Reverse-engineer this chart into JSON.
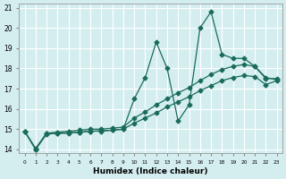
{
  "line1_x": [
    0,
    1,
    2,
    3,
    4,
    5,
    6,
    7,
    8,
    9,
    10,
    11,
    12,
    13,
    14,
    15,
    16,
    17,
    18,
    19,
    20,
    21,
    22,
    23
  ],
  "line1_y": [
    14.9,
    14.0,
    14.8,
    14.8,
    14.8,
    14.85,
    14.9,
    14.9,
    14.95,
    15.0,
    16.5,
    17.55,
    19.3,
    18.0,
    15.4,
    16.2,
    20.0,
    20.8,
    18.7,
    18.5,
    18.5,
    18.1,
    17.5,
    17.5
  ],
  "line2_x": [
    0,
    1,
    2,
    3,
    4,
    5,
    6,
    7,
    8,
    9,
    10,
    11,
    12,
    13,
    14,
    15,
    16,
    17,
    18,
    19,
    20,
    21,
    22,
    23
  ],
  "line2_y": [
    14.9,
    14.05,
    14.8,
    14.85,
    14.9,
    14.95,
    15.0,
    15.0,
    15.05,
    15.1,
    15.55,
    15.85,
    16.2,
    16.5,
    16.8,
    17.05,
    17.4,
    17.7,
    17.95,
    18.1,
    18.2,
    18.1,
    17.55,
    17.45
  ],
  "line3_x": [
    0,
    1,
    2,
    3,
    4,
    5,
    6,
    7,
    8,
    9,
    10,
    11,
    12,
    13,
    14,
    15,
    16,
    17,
    18,
    19,
    20,
    21,
    22,
    23
  ],
  "line3_y": [
    14.9,
    14.0,
    14.75,
    14.8,
    14.82,
    14.85,
    14.9,
    14.92,
    14.95,
    15.0,
    15.3,
    15.55,
    15.8,
    16.1,
    16.35,
    16.6,
    16.9,
    17.15,
    17.4,
    17.55,
    17.65,
    17.6,
    17.2,
    17.4
  ],
  "color": "#1a6b5a",
  "bg_color": "#d4eef0",
  "grid_color": "#ffffff",
  "xlabel": "Humidex (Indice chaleur)",
  "xlim": [
    -0.5,
    23.5
  ],
  "ylim": [
    13.8,
    21.2
  ],
  "yticks": [
    14,
    15,
    16,
    17,
    18,
    19,
    20,
    21
  ],
  "xticks": [
    0,
    1,
    2,
    3,
    4,
    5,
    6,
    7,
    8,
    9,
    10,
    11,
    12,
    13,
    14,
    15,
    16,
    17,
    18,
    19,
    20,
    21,
    22,
    23
  ],
  "xtick_labels": [
    "0",
    "1",
    "2",
    "3",
    "4",
    "5",
    "6",
    "7",
    "8",
    "9",
    "10",
    "11",
    "12",
    "13",
    "14",
    "15",
    "16",
    "17",
    "18",
    "19",
    "20",
    "21",
    "22",
    "23"
  ]
}
